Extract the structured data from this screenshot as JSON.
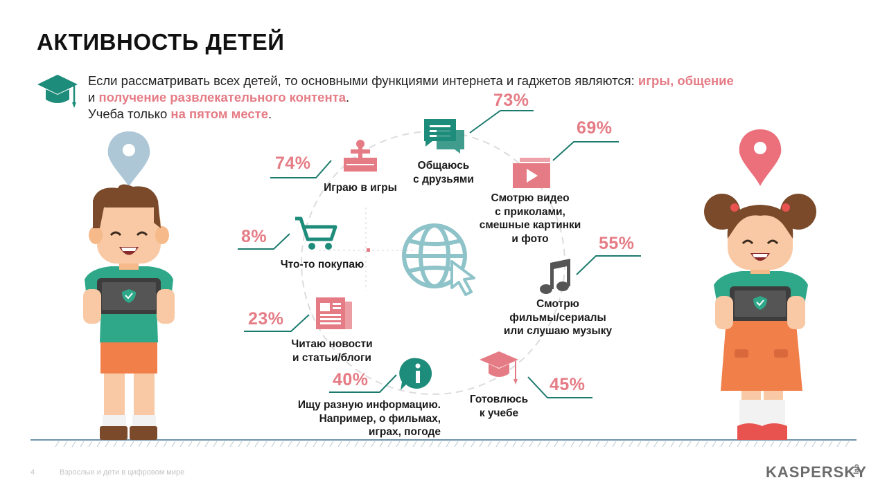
{
  "title": "АКТИВНОСТЬ ДЕТЕЙ",
  "intro": {
    "line1_plain": "Если рассматривать всех детей, то основными функциями интернета и гаджетов являются: ",
    "line1_hl": "игры, общение",
    "line2_plain": "и ",
    "line2_hl": "получение развлекательного контента",
    "line2_end": ".",
    "line3_plain": "Учеба только ",
    "line3_hl": "на пятом месте",
    "line3_end": "."
  },
  "activities": [
    {
      "id": "games",
      "percent": "74%",
      "label": [
        "Играю в игры"
      ],
      "icon": "joystick-icon"
    },
    {
      "id": "friends",
      "percent": "73%",
      "label": [
        "Общаюсь",
        "с друзьями"
      ],
      "icon": "chat-icon"
    },
    {
      "id": "video",
      "percent": "69%",
      "label": [
        "Смотрю видео",
        "с приколами,",
        "смешные картинки",
        "и фото"
      ],
      "icon": "video-play-icon"
    },
    {
      "id": "shopping",
      "percent": "8%",
      "label": [
        "Что-то покупаю"
      ],
      "icon": "shopping-cart-icon"
    },
    {
      "id": "music",
      "percent": "55%",
      "label": [
        "Смотрю",
        "фильмы/сериалы",
        "или слушаю музыку"
      ],
      "icon": "music-note-icon"
    },
    {
      "id": "news",
      "percent": "23%",
      "label": [
        "Читаю новости",
        "и статьи/блоги"
      ],
      "icon": "newspaper-icon"
    },
    {
      "id": "info",
      "percent": "40%",
      "label": [
        "Ищу разную информацию.",
        "Например, о фильмах,",
        "играх, погоде"
      ],
      "icon": "info-icon"
    },
    {
      "id": "study",
      "percent": "45%",
      "label": [
        "Готовлюсь",
        "к учебе"
      ],
      "icon": "graduation-cap-icon"
    }
  ],
  "center_icon": "globe-cursor-icon",
  "footer": {
    "page_number": "4",
    "caption": "Взрослые и дети в цифровом мире",
    "logo": "KASPERSKY",
    "logo_suffix": "lab"
  },
  "colors": {
    "accent_pink": "#e57c85",
    "teal": "#1b7a6e",
    "icon_teal": "#1e8c7a",
    "guide_gray": "#d8d8d8"
  }
}
